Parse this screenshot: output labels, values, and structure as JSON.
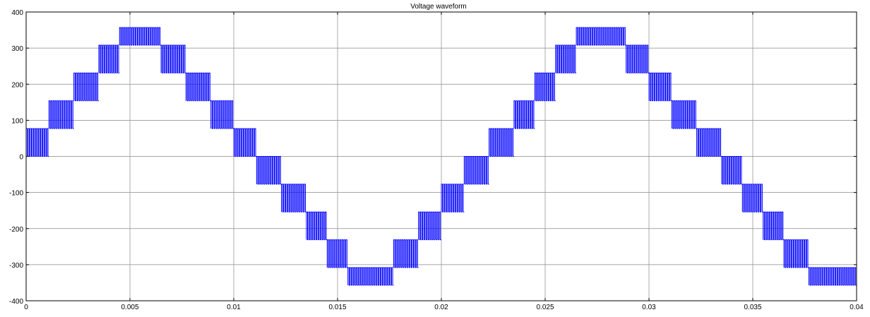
{
  "chart_data": {
    "type": "line",
    "title": "Voltage waveform",
    "xlabel": "",
    "ylabel": "",
    "xlim": [
      0,
      0.04
    ],
    "ylim": [
      -400,
      400
    ],
    "x_ticks": [
      0,
      0.005,
      0.01,
      0.015,
      0.02,
      0.025,
      0.03,
      0.035,
      0.04
    ],
    "x_tick_labels": [
      "0",
      "0.005",
      "0.01",
      "0.015",
      "0.02",
      "0.025",
      "0.03",
      "0.035",
      "0.04"
    ],
    "y_ticks": [
      -400,
      -300,
      -200,
      -100,
      0,
      100,
      200,
      300,
      400
    ],
    "y_tick_labels": [
      "-400",
      "-300",
      "-200",
      "-100",
      "0",
      "100",
      "200",
      "300",
      "400"
    ],
    "grid": true,
    "legend": "none",
    "series": [
      {
        "description": "PWM-switched multilevel staircase voltage; each step switches between the two listed levels",
        "color": "#0000ff",
        "segments": [
          {
            "t_start": 0.0,
            "t_end": 0.0011,
            "levels": [
              0,
              77
            ]
          },
          {
            "t_start": 0.0011,
            "t_end": 0.0023,
            "levels": [
              77,
              154
            ]
          },
          {
            "t_start": 0.0023,
            "t_end": 0.0035,
            "levels": [
              154,
              231
            ]
          },
          {
            "t_start": 0.0035,
            "t_end": 0.0045,
            "levels": [
              231,
              308
            ]
          },
          {
            "t_start": 0.0045,
            "t_end": 0.0055,
            "levels": [
              308,
              357
            ]
          },
          {
            "t_start": 0.0055,
            "t_end": 0.0065,
            "levels": [
              308,
              357
            ]
          },
          {
            "t_start": 0.0065,
            "t_end": 0.0077,
            "levels": [
              231,
              308
            ]
          },
          {
            "t_start": 0.0077,
            "t_end": 0.0089,
            "levels": [
              154,
              231
            ]
          },
          {
            "t_start": 0.0089,
            "t_end": 0.01,
            "levels": [
              77,
              154
            ]
          },
          {
            "t_start": 0.01,
            "t_end": 0.0111,
            "levels": [
              0,
              77
            ]
          },
          {
            "t_start": 0.0111,
            "t_end": 0.0123,
            "levels": [
              0,
              -77
            ]
          },
          {
            "t_start": 0.0123,
            "t_end": 0.0135,
            "levels": [
              -77,
              -154
            ]
          },
          {
            "t_start": 0.0135,
            "t_end": 0.0145,
            "levels": [
              -154,
              -231
            ]
          },
          {
            "t_start": 0.0145,
            "t_end": 0.0155,
            "levels": [
              -231,
              -308
            ]
          },
          {
            "t_start": 0.0155,
            "t_end": 0.0165,
            "levels": [
              -308,
              -357
            ]
          },
          {
            "t_start": 0.0165,
            "t_end": 0.0177,
            "levels": [
              -308,
              -357
            ]
          },
          {
            "t_start": 0.0177,
            "t_end": 0.0189,
            "levels": [
              -231,
              -308
            ]
          },
          {
            "t_start": 0.0189,
            "t_end": 0.02,
            "levels": [
              -154,
              -231
            ]
          },
          {
            "t_start": 0.02,
            "t_end": 0.0211,
            "levels": [
              -77,
              -154
            ]
          },
          {
            "t_start": 0.0211,
            "t_end": 0.0223,
            "levels": [
              0,
              -77
            ]
          },
          {
            "t_start": 0.0223,
            "t_end": 0.0235,
            "levels": [
              0,
              77
            ]
          },
          {
            "t_start": 0.0235,
            "t_end": 0.0245,
            "levels": [
              77,
              154
            ]
          },
          {
            "t_start": 0.0245,
            "t_end": 0.0255,
            "levels": [
              154,
              231
            ]
          },
          {
            "t_start": 0.0255,
            "t_end": 0.0265,
            "levels": [
              231,
              308
            ]
          },
          {
            "t_start": 0.0265,
            "t_end": 0.0277,
            "levels": [
              308,
              357
            ]
          },
          {
            "t_start": 0.0277,
            "t_end": 0.0289,
            "levels": [
              308,
              357
            ]
          },
          {
            "t_start": 0.0289,
            "t_end": 0.03,
            "levels": [
              231,
              308
            ]
          },
          {
            "t_start": 0.03,
            "t_end": 0.0311,
            "levels": [
              154,
              231
            ]
          },
          {
            "t_start": 0.0311,
            "t_end": 0.0323,
            "levels": [
              77,
              154
            ]
          },
          {
            "t_start": 0.0323,
            "t_end": 0.0335,
            "levels": [
              0,
              77
            ]
          },
          {
            "t_start": 0.0335,
            "t_end": 0.0345,
            "levels": [
              0,
              -77
            ]
          },
          {
            "t_start": 0.0345,
            "t_end": 0.0355,
            "levels": [
              -77,
              -154
            ]
          },
          {
            "t_start": 0.0355,
            "t_end": 0.0365,
            "levels": [
              -154,
              -231
            ]
          },
          {
            "t_start": 0.0365,
            "t_end": 0.0377,
            "levels": [
              -231,
              -308
            ]
          },
          {
            "t_start": 0.0377,
            "t_end": 0.0389,
            "levels": [
              -308,
              -357
            ]
          },
          {
            "t_start": 0.0389,
            "t_end": 0.04,
            "levels": [
              -308,
              -357
            ]
          }
        ]
      }
    ]
  }
}
